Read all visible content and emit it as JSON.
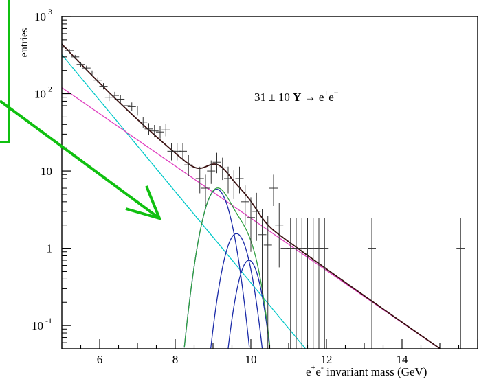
{
  "chart_data": {
    "type": "scatter",
    "title": "",
    "ylabel": "entries",
    "xlabel_parts": [
      "e",
      "+",
      "e",
      "-",
      " invariant mass (GeV)"
    ],
    "xlim": [
      5,
      16
    ],
    "ylim": [
      0.05,
      1000
    ],
    "yscale": "log",
    "x_ticks": [
      {
        "value": 6,
        "label": "6"
      },
      {
        "value": 8,
        "label": "8"
      },
      {
        "value": 10,
        "label": "10"
      },
      {
        "value": 12,
        "label": "12"
      },
      {
        "value": 14,
        "label": "14"
      }
    ],
    "y_ticks": [
      {
        "value": 0.1,
        "base": "10",
        "exp": "-1"
      },
      {
        "value": 1,
        "base": "1",
        "exp": ""
      },
      {
        "value": 10,
        "base": "10",
        "exp": ""
      },
      {
        "value": 100,
        "base": "10",
        "exp": "2"
      },
      {
        "value": 1000,
        "base": "10",
        "exp": "3"
      }
    ],
    "annotation": {
      "text_parts": [
        "31 ± 10  ",
        "Υ",
        " → e",
        "+",
        "e",
        "−"
      ],
      "x": 11.2,
      "y": 145
    },
    "data_points": [
      {
        "x": 5.2,
        "y": 360
      },
      {
        "x": 5.35,
        "y": 300
      },
      {
        "x": 5.5,
        "y": 240
      },
      {
        "x": 5.65,
        "y": 215
      },
      {
        "x": 5.8,
        "y": 185
      },
      {
        "x": 5.95,
        "y": 150
      },
      {
        "x": 6.1,
        "y": 125
      },
      {
        "x": 6.25,
        "y": 90
      },
      {
        "x": 6.4,
        "y": 95
      },
      {
        "x": 6.55,
        "y": 85
      },
      {
        "x": 6.7,
        "y": 70
      },
      {
        "x": 6.85,
        "y": 68
      },
      {
        "x": 7.0,
        "y": 60
      },
      {
        "x": 7.15,
        "y": 43
      },
      {
        "x": 7.3,
        "y": 35
      },
      {
        "x": 7.45,
        "y": 33
      },
      {
        "x": 7.6,
        "y": 32
      },
      {
        "x": 7.75,
        "y": 34
      },
      {
        "x": 7.9,
        "y": 18
      },
      {
        "x": 8.05,
        "y": 18
      },
      {
        "x": 8.2,
        "y": 18
      },
      {
        "x": 8.35,
        "y": 12
      },
      {
        "x": 8.5,
        "y": 11
      },
      {
        "x": 8.65,
        "y": 8
      },
      {
        "x": 8.8,
        "y": 6
      },
      {
        "x": 8.95,
        "y": 10
      },
      {
        "x": 9.1,
        "y": 13
      },
      {
        "x": 9.25,
        "y": 11
      },
      {
        "x": 9.4,
        "y": 8
      },
      {
        "x": 9.55,
        "y": 7
      },
      {
        "x": 9.7,
        "y": 8
      },
      {
        "x": 9.85,
        "y": 4
      },
      {
        "x": 10.0,
        "y": 2.5
      },
      {
        "x": 10.15,
        "y": 3
      },
      {
        "x": 10.3,
        "y": 1.5
      },
      {
        "x": 10.45,
        "y": 1.1
      },
      {
        "x": 10.6,
        "y": 6
      },
      {
        "x": 10.75,
        "y": 2
      },
      {
        "x": 10.9,
        "y": 1
      },
      {
        "x": 11.05,
        "y": 1
      },
      {
        "x": 11.2,
        "y": 1
      },
      {
        "x": 11.35,
        "y": 1
      },
      {
        "x": 11.5,
        "y": 1
      },
      {
        "x": 11.65,
        "y": 1
      },
      {
        "x": 11.8,
        "y": 1
      },
      {
        "x": 11.95,
        "y": 1
      },
      {
        "x": 13.2,
        "y": 1
      },
      {
        "x": 15.55,
        "y": 1
      }
    ],
    "series": [
      {
        "color": "#00c8c8",
        "kind": "line",
        "points": [
          [
            5.0,
            320
          ],
          [
            15.0,
            0.0004
          ]
        ]
      },
      {
        "color": "#e040c0",
        "kind": "line",
        "points": [
          [
            5.0,
            120
          ],
          [
            15.0,
            0.05
          ]
        ]
      },
      {
        "color": "#1a2aa8",
        "kind": "gauss",
        "amp": 5.8,
        "mu": 9.1,
        "sigma": 0.28,
        "floor_sigma_scale": 3.0
      },
      {
        "color": "#1a2aa8",
        "kind": "gauss",
        "amp": 1.55,
        "mu": 9.62,
        "sigma": 0.26
      },
      {
        "color": "#1a2aa8",
        "kind": "gauss",
        "amp": 0.7,
        "mu": 9.95,
        "sigma": 0.24
      },
      {
        "color": "#30a040",
        "kind": "sum_peaks"
      },
      {
        "color": "#3a1010",
        "kind": "total"
      }
    ],
    "arrow_color": "#10c010",
    "box_color": "#10c010"
  }
}
